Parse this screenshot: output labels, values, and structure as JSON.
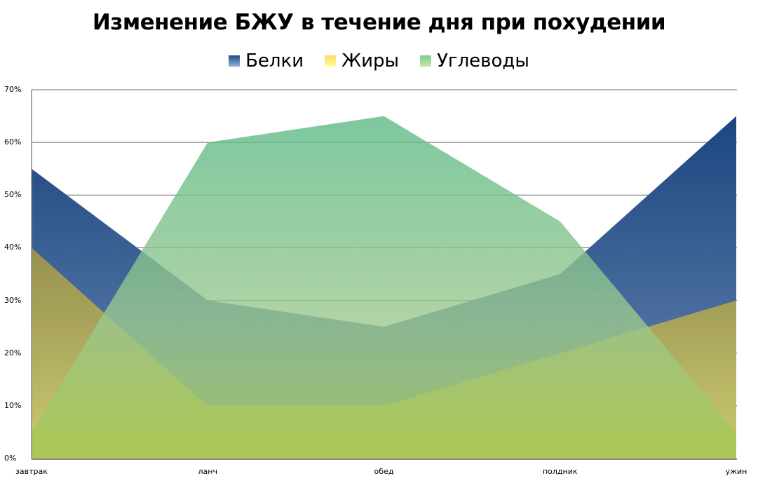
{
  "chart_data": {
    "type": "area",
    "title": "Изменение БЖУ в течение дня при похудении",
    "xlabel": "",
    "ylabel": "",
    "categories": [
      "завтрак",
      "ланч",
      "обед",
      "полдник",
      "ужин"
    ],
    "series": [
      {
        "name": "Белки",
        "values": [
          55,
          30,
          25,
          35,
          65
        ],
        "color": "#1f4a82"
      },
      {
        "name": "Жиры",
        "values": [
          40,
          10,
          10,
          20,
          30
        ],
        "color": "#c9b24a"
      },
      {
        "name": "Углеводы",
        "values": [
          5,
          60,
          65,
          45,
          5
        ],
        "color": "#6cc08a"
      }
    ],
    "ylim": [
      0,
      70
    ],
    "yticks": [
      "0%",
      "10%",
      "20%",
      "30%",
      "40%",
      "50%",
      "60%",
      "70%"
    ],
    "grid": true,
    "legend_position": "top",
    "stacked": false
  },
  "title": "Изменение БЖУ в течение дня при похудении",
  "legend": [
    {
      "label": "Белки"
    },
    {
      "label": "Жиры"
    },
    {
      "label": "Углеводы"
    }
  ],
  "yaxis": {
    "ticks": [
      "70%",
      "60%",
      "50%",
      "40%",
      "30%",
      "20%",
      "10%",
      "0%"
    ]
  },
  "xaxis": {
    "ticks": [
      "завтрак",
      "ланч",
      "обед",
      "полдник",
      "ужин"
    ]
  }
}
